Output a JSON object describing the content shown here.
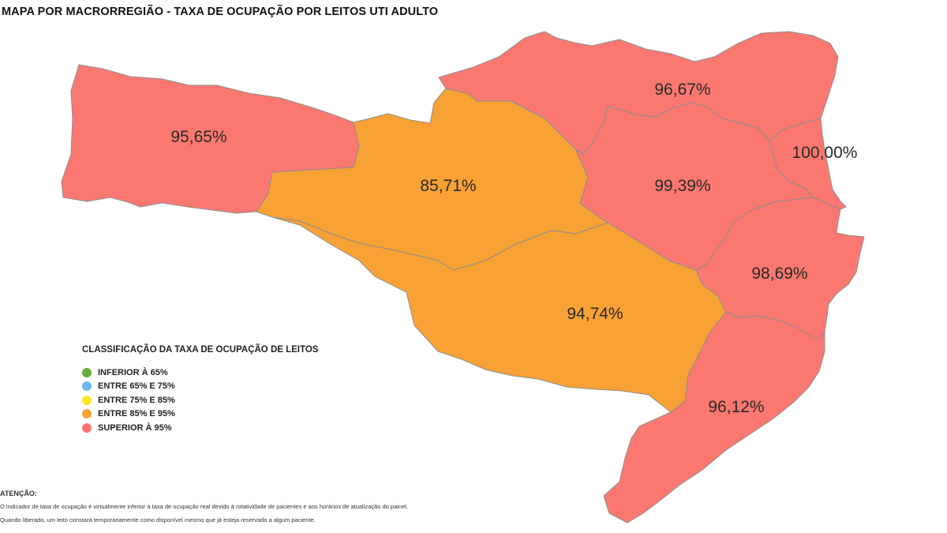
{
  "title": "MAPA POR MACRORREGIÃO - TAXA DE OCUPAÇÃO POR LEITOS UTI ADULTO",
  "colors": {
    "superior_95": "#FA7870",
    "entre_85_95": "#F8A134",
    "border": "#8E8E8E"
  },
  "regions": [
    {
      "name": "oeste",
      "value_label": "95,65%",
      "category": "superior_95"
    },
    {
      "name": "meio-oeste",
      "value_label": "85,71%",
      "category": "entre_85_95"
    },
    {
      "name": "serra",
      "value_label": "94,74%",
      "category": "entre_85_95"
    },
    {
      "name": "norte",
      "value_label": "96,67%",
      "category": "superior_95"
    },
    {
      "name": "vale",
      "value_label": "99,39%",
      "category": "superior_95"
    },
    {
      "name": "foz",
      "value_label": "100,00%",
      "category": "superior_95"
    },
    {
      "name": "grande-florianopolis",
      "value_label": "98,69%",
      "category": "superior_95"
    },
    {
      "name": "sul",
      "value_label": "96,12%",
      "category": "superior_95"
    }
  ],
  "legend": {
    "title": "CLASSIFICAÇÃO DA TAXA DE OCUPAÇÃO DE LEITOS",
    "items": [
      {
        "label": "INFERIOR À 65%",
        "color": "#6AAA3E"
      },
      {
        "label": "ENTRE 65% E 75%",
        "color": "#6EB7EE"
      },
      {
        "label": "ENTRE 75% E 85%",
        "color": "#FFE320"
      },
      {
        "label": "ENTRE 85% E 95%",
        "color": "#F8A134"
      },
      {
        "label": "SUPERIOR À 95%",
        "color": "#FA7870"
      }
    ]
  },
  "notes": {
    "title": "ATENÇÃO:",
    "lines": [
      "O indicador de taxa de ocupação é virtualmente inferior à taxa de ocupação real devido à rotatividade de pacientes e aos horários de atualização do painel.",
      "Quando liberado, um leito constará temporariamente como disponível mesmo que já esteja reservado a algum paciente."
    ]
  }
}
